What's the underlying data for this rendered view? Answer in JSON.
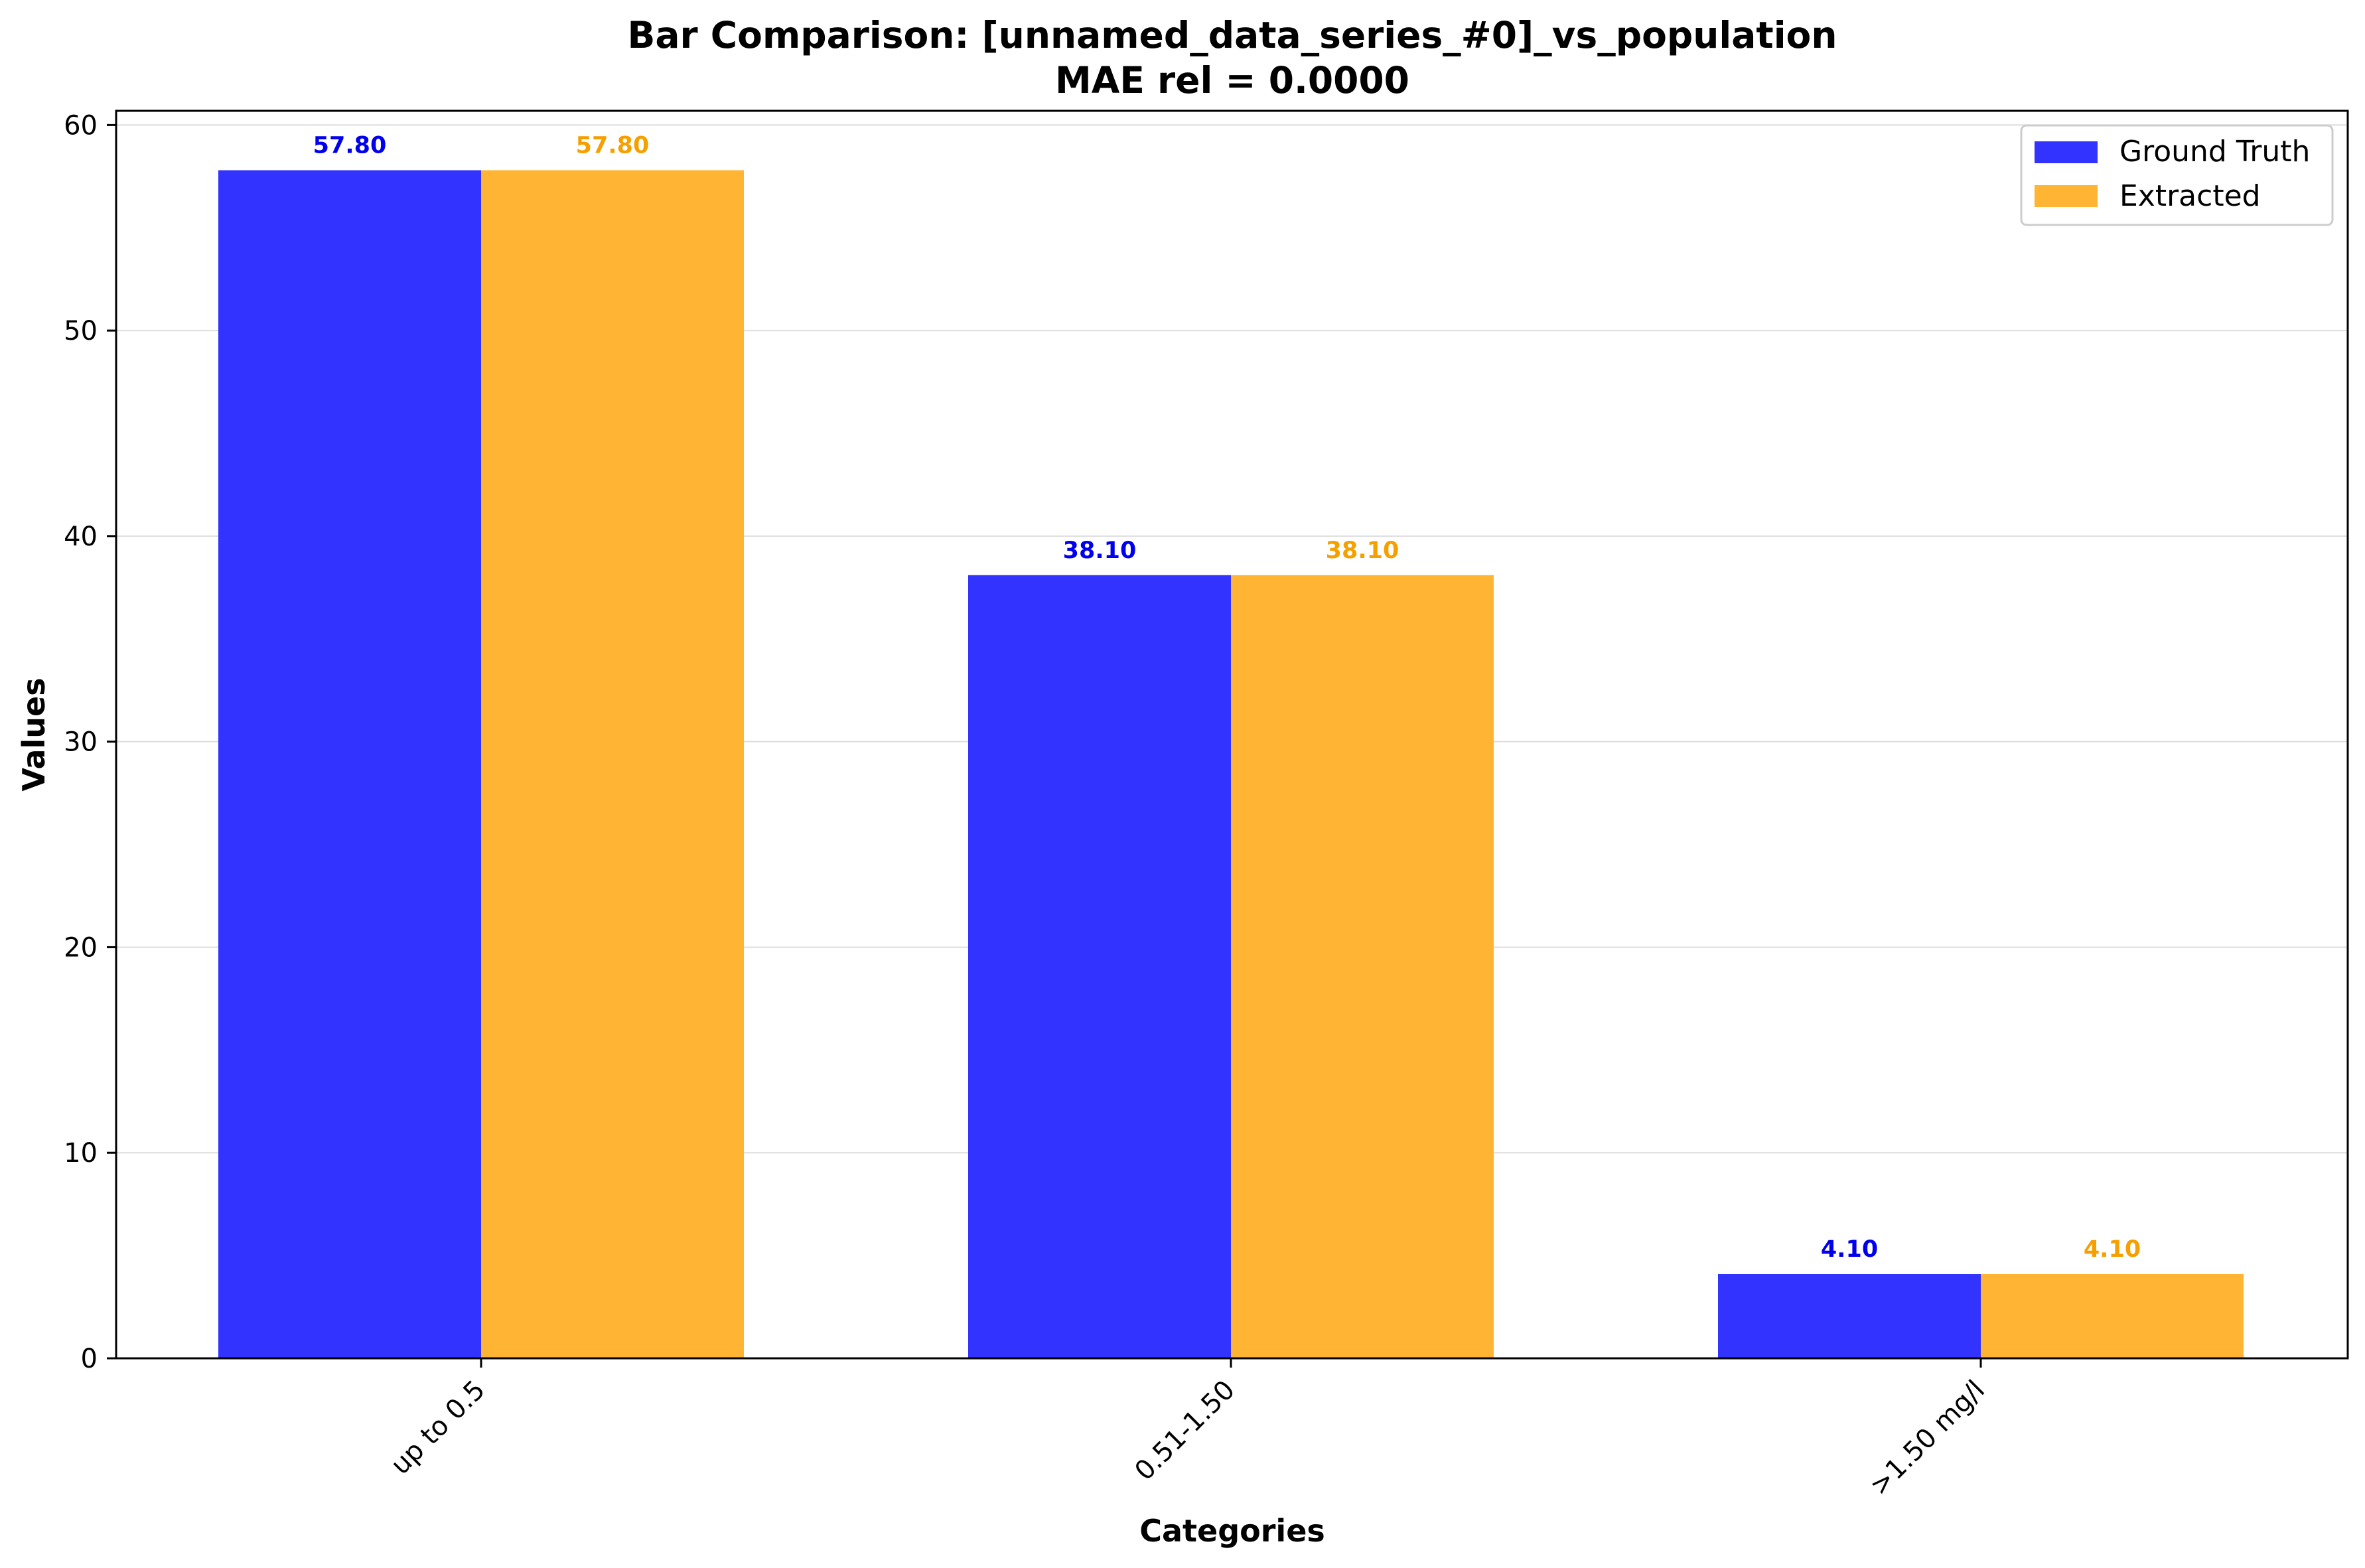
{
  "chart_data": {
    "type": "bar",
    "title": "Bar Comparison: [unnamed_data_series_#0]_vs_population",
    "subtitle": "MAE rel = 0.0000",
    "xlabel": "Categories",
    "ylabel": "Values",
    "categories": [
      "up to 0.5",
      "0.51-1.50",
      ">1.50 mg/l"
    ],
    "series": [
      {
        "name": "Ground Truth",
        "color": "#3333ff",
        "label_color": "#0000ee",
        "values": [
          57.8,
          38.1,
          4.1
        ],
        "labels": [
          "57.80",
          "38.10",
          "4.10"
        ]
      },
      {
        "name": "Extracted",
        "color": "#ffb533",
        "label_color": "#f5a000",
        "values": [
          57.8,
          38.1,
          4.1
        ],
        "labels": [
          "57.80",
          "38.10",
          "4.10"
        ]
      }
    ],
    "ylim": [
      0,
      60.69
    ],
    "yticks": [
      0,
      10,
      20,
      30,
      40,
      50,
      60
    ],
    "grid": "horizontal",
    "legend_position": "top-right"
  }
}
